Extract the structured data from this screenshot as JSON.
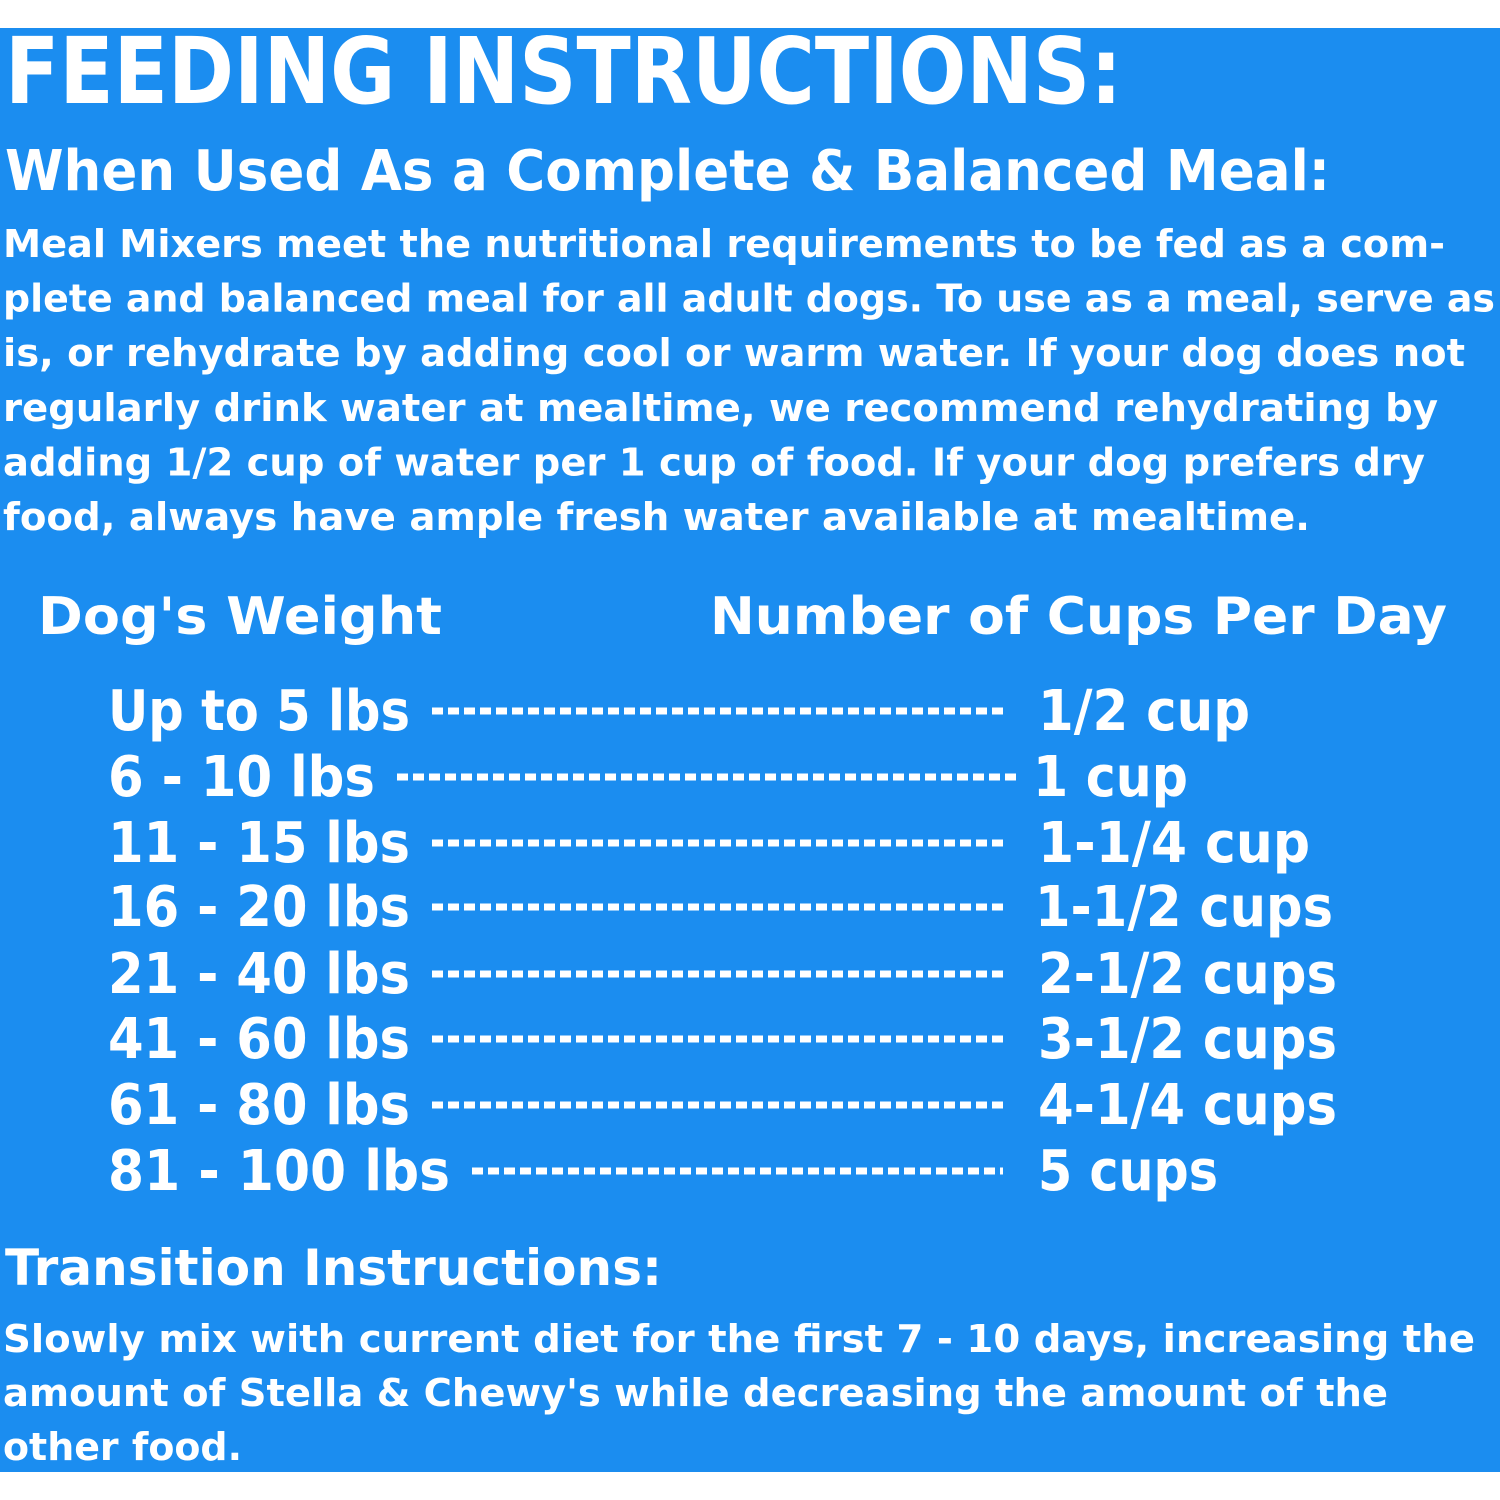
{
  "header": {
    "title": "FEEDING INSTRUCTIONS:",
    "subtitle": "When Used As a Complete & Balanced Meal:"
  },
  "intro": {
    "lines": [
      "Meal Mixers meet the nutritional requirements to be fed as a com-",
      "plete and balanced meal for all adult dogs. To use as a meal, serve as",
      "is, or rehydrate by adding cool or warm water. If your dog does not",
      "regularly drink water at mealtime, we recommend rehydrating by",
      "adding 1/2 cup of water per 1 cup of food. If your dog prefers dry",
      "food, always have ample fresh water available at mealtime."
    ]
  },
  "table": {
    "headers": [
      "Dog's Weight",
      "Number of Cups Per Day"
    ],
    "rows": [
      [
        "Up to 5 lbs",
        "1/2 cup"
      ],
      [
        "6 - 10 lbs",
        "1 cup"
      ],
      [
        "11 - 15 lbs",
        "1-1/4 cup"
      ],
      [
        "16 - 20 lbs",
        "1-1/2 cups"
      ],
      [
        "21 - 40 lbs",
        "2-1/2 cups"
      ],
      [
        "41 - 60 lbs",
        "3-1/2 cups"
      ],
      [
        "61 - 80 lbs",
        "4-1/4 cups"
      ],
      [
        "81 - 100 lbs",
        "5 cups"
      ]
    ]
  },
  "transition": {
    "title": "Transition Instructions:",
    "lines": [
      "Slowly mix with current diet for the first 7 - 10 days, increasing the",
      "amount of Stella & Chewy's while decreasing the amount of the",
      "other food."
    ]
  }
}
